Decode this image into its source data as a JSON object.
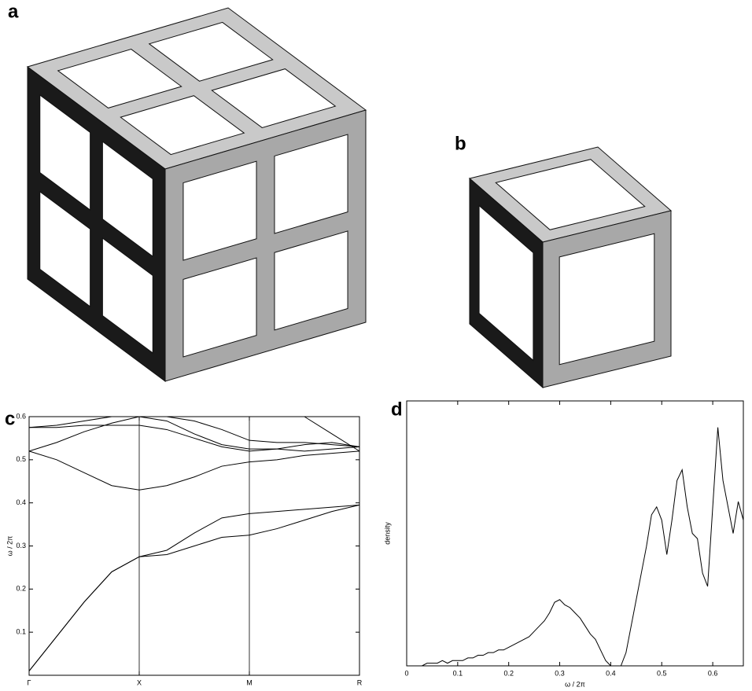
{
  "panel_labels": [
    "a",
    "b",
    "c",
    "d"
  ],
  "chart_data": [
    {
      "type": "line",
      "y_label": "ω / 2π",
      "x": [
        0,
        0.25,
        0.5,
        0.75,
        1,
        1.25,
        1.5,
        1.75,
        2,
        2.25,
        2.5,
        2.75,
        3
      ],
      "xlim": [
        0,
        3
      ],
      "xticks": [
        {
          "value": 0,
          "label": "Γ"
        },
        {
          "value": 1,
          "label": "X"
        },
        {
          "value": 2,
          "label": "M"
        },
        {
          "value": 3,
          "label": "R"
        }
      ],
      "ylim": [
        0,
        0.6
      ],
      "yticks": [
        0.1,
        0.2,
        0.3,
        0.4,
        0.5,
        0.6
      ],
      "grid": false,
      "series": [
        {
          "color": "#000",
          "values": [
            0.01,
            0.09,
            0.17,
            0.24,
            0.275,
            0.29,
            0.33,
            0.365,
            0.375,
            0.38,
            0.385,
            0.39,
            0.395
          ]
        },
        {
          "color": "#000",
          "values": [
            0.01,
            0.09,
            0.17,
            0.24,
            0.275,
            0.28,
            0.3,
            0.32,
            0.325,
            0.34,
            0.36,
            0.38,
            0.395
          ]
        },
        {
          "color": "#000",
          "values": [
            0.52,
            0.5,
            0.47,
            0.44,
            0.43,
            0.44,
            0.46,
            0.485,
            0.495,
            0.5,
            0.51,
            0.515,
            0.52
          ]
        },
        {
          "color": "#000",
          "values": [
            0.52,
            0.54,
            0.565,
            0.585,
            0.6,
            0.59,
            0.56,
            0.535,
            0.525,
            0.525,
            0.52,
            0.525,
            0.53
          ]
        },
        {
          "color": "#000",
          "values": [
            0.575,
            0.575,
            0.58,
            0.58,
            0.58,
            0.57,
            0.55,
            0.53,
            0.52,
            0.525,
            0.535,
            0.54,
            0.53
          ]
        },
        {
          "color": "#000",
          "values": [
            0.575,
            0.58,
            0.59,
            0.6,
            null,
            0.6,
            0.59,
            0.57,
            0.545,
            0.54,
            0.54,
            0.535,
            0.53
          ]
        },
        {
          "color": "#000",
          "values": [
            null,
            null,
            null,
            null,
            null,
            null,
            null,
            null,
            null,
            null,
            0.6,
            0.56,
            0.52
          ]
        }
      ]
    },
    {
      "type": "line",
      "x_label": "ω / 2π",
      "y_label": "density",
      "x": [
        0,
        0.01,
        0.02,
        0.03,
        0.04,
        0.05,
        0.06,
        0.07,
        0.08,
        0.09,
        0.1,
        0.11,
        0.12,
        0.13,
        0.14,
        0.15,
        0.16,
        0.17,
        0.18,
        0.19,
        0.2,
        0.21,
        0.22,
        0.23,
        0.24,
        0.25,
        0.26,
        0.27,
        0.28,
        0.29,
        0.3,
        0.31,
        0.32,
        0.33,
        0.34,
        0.35,
        0.36,
        0.37,
        0.38,
        0.39,
        0.4,
        0.41,
        0.42,
        0.43,
        0.44,
        0.45,
        0.46,
        0.47,
        0.48,
        0.49,
        0.5,
        0.51,
        0.52,
        0.53,
        0.54,
        0.55,
        0.56,
        0.57,
        0.58,
        0.59,
        0.6,
        0.61,
        0.62,
        0.63,
        0.64,
        0.65,
        0.66
      ],
      "xlim": [
        0,
        0.66
      ],
      "xticks": [
        0,
        0.1,
        0.2,
        0.3,
        0.4,
        0.5,
        0.6
      ],
      "ylim": [
        0,
        1
      ],
      "grid": false,
      "series": [
        {
          "color": "#000",
          "values": [
            0,
            0,
            0,
            0,
            0.01,
            0.01,
            0.01,
            0.02,
            0.01,
            0.02,
            0.02,
            0.02,
            0.03,
            0.03,
            0.04,
            0.04,
            0.05,
            0.05,
            0.06,
            0.06,
            0.07,
            0.08,
            0.09,
            0.1,
            0.11,
            0.13,
            0.15,
            0.17,
            0.2,
            0.24,
            0.25,
            0.23,
            0.22,
            0.2,
            0.18,
            0.15,
            0.12,
            0.1,
            0.06,
            0.02,
            0,
            0,
            0,
            0.05,
            0.15,
            0.25,
            0.35,
            0.45,
            0.57,
            0.6,
            0.55,
            0.42,
            0.55,
            0.7,
            0.74,
            0.6,
            0.5,
            0.48,
            0.35,
            0.3,
            0.6,
            0.9,
            0.7,
            0.6,
            0.5,
            0.62,
            0.55
          ]
        }
      ]
    }
  ]
}
